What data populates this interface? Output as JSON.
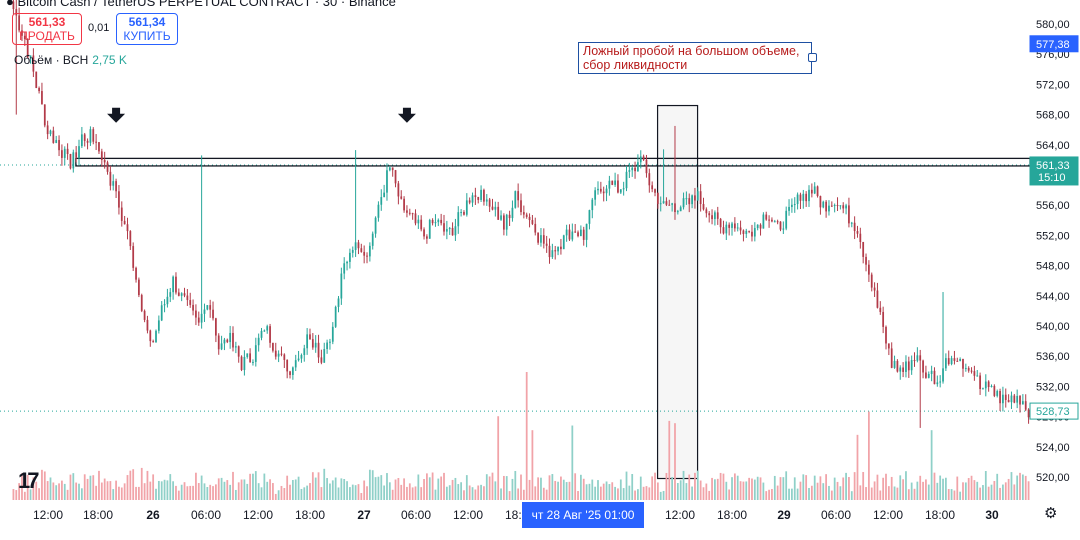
{
  "toolbar": {
    "sell_price": "561,33",
    "sell_label": "ПРОДАТЬ",
    "spread": "0,01",
    "buy_price": "561,34",
    "buy_label": "КУПИТЬ",
    "volume_label": "Объём · BCH",
    "volume_value": "2,75 K"
  },
  "annotation": {
    "text": "Ложный пробой на большом объеме, сбор ликвидности"
  },
  "time_marker": {
    "label": "чт 28 Авг '25   01:00"
  },
  "chart_data": {
    "type": "candlestick",
    "y_ticks": [
      580,
      576,
      572,
      568,
      564,
      560,
      556,
      552,
      548,
      544,
      540,
      536,
      532,
      528,
      524,
      520
    ],
    "y_tick_labels": [
      "580,00",
      "576,00",
      "572,00",
      "568,00",
      "564,00",
      "560,00",
      "556,00",
      "552,00",
      "548,00",
      "544,00",
      "540,00",
      "536,00",
      "532,00",
      "528,00",
      "524,00",
      "520,00"
    ],
    "ylim": [
      518,
      582
    ],
    "x_labels": [
      "12:00",
      "18:00",
      "26",
      "06:00",
      "12:00",
      "18:00",
      "27",
      "06:00",
      "12:00",
      "18:00",
      "12:00",
      "18:00",
      "29",
      "06:00",
      "12:00",
      "18:00",
      "30"
    ],
    "price_labels": [
      {
        "value": 577.38,
        "label": "577,38",
        "color": "#2962ff"
      },
      {
        "value": 561.33,
        "label": "561,33",
        "sublabel": "15:10",
        "color": "#26a69a"
      },
      {
        "value": 528.73,
        "label": "528,73",
        "color": "#26a69a",
        "outline": true
      }
    ],
    "resistance_level": [
      561.2,
      562.2
    ],
    "colors": {
      "up": "#26a69a",
      "down": "#b23a48",
      "vol_up": "#8fd0c8",
      "vol_down": "#f1a3a8"
    },
    "anchors": [
      [
        0,
        582
      ],
      [
        4,
        578
      ],
      [
        8,
        572
      ],
      [
        12,
        566
      ],
      [
        16,
        564
      ],
      [
        20,
        561
      ],
      [
        24,
        565
      ],
      [
        28,
        565
      ],
      [
        32,
        562
      ],
      [
        36,
        557
      ],
      [
        40,
        552
      ],
      [
        44,
        545
      ],
      [
        48,
        537
      ],
      [
        52,
        542
      ],
      [
        56,
        546
      ],
      [
        60,
        543
      ],
      [
        64,
        541
      ],
      [
        68,
        543
      ],
      [
        72,
        538
      ],
      [
        76,
        538
      ],
      [
        80,
        535
      ],
      [
        84,
        536
      ],
      [
        88,
        540
      ],
      [
        92,
        537
      ],
      [
        96,
        534
      ],
      [
        100,
        536
      ],
      [
        104,
        539
      ],
      [
        108,
        536
      ],
      [
        112,
        540
      ],
      [
        116,
        548
      ],
      [
        120,
        552
      ],
      [
        124,
        549
      ],
      [
        128,
        556
      ],
      [
        132,
        561
      ],
      [
        136,
        556
      ],
      [
        140,
        554
      ],
      [
        144,
        552
      ],
      [
        148,
        554
      ],
      [
        152,
        552
      ],
      [
        156,
        554
      ],
      [
        160,
        557
      ],
      [
        164,
        558
      ],
      [
        168,
        556
      ],
      [
        172,
        553
      ],
      [
        176,
        557
      ],
      [
        180,
        555
      ],
      [
        184,
        552
      ],
      [
        188,
        550
      ],
      [
        192,
        551
      ],
      [
        196,
        553
      ],
      [
        200,
        552
      ],
      [
        204,
        557
      ],
      [
        208,
        559
      ],
      [
        212,
        558
      ],
      [
        216,
        560
      ],
      [
        220,
        562
      ],
      [
        224,
        558
      ],
      [
        228,
        556
      ],
      [
        232,
        556
      ],
      [
        236,
        556
      ],
      [
        240,
        557
      ],
      [
        244,
        555
      ],
      [
        248,
        553
      ],
      [
        252,
        554
      ],
      [
        256,
        552
      ],
      [
        260,
        553
      ],
      [
        264,
        555
      ],
      [
        268,
        553
      ],
      [
        272,
        555
      ],
      [
        276,
        557
      ],
      [
        280,
        558
      ],
      [
        284,
        556
      ],
      [
        288,
        557
      ],
      [
        292,
        555
      ],
      [
        296,
        553
      ],
      [
        300,
        547
      ],
      [
        304,
        541
      ],
      [
        308,
        535
      ],
      [
        312,
        534
      ],
      [
        316,
        536
      ],
      [
        320,
        534
      ],
      [
        324,
        533
      ],
      [
        328,
        536
      ],
      [
        332,
        535
      ],
      [
        336,
        533
      ],
      [
        340,
        532
      ],
      [
        344,
        531
      ],
      [
        348,
        530
      ],
      [
        352,
        531
      ],
      [
        356,
        529
      ]
    ],
    "spikes": [
      {
        "index": 1,
        "high": 584,
        "low": 568
      },
      {
        "index": 66,
        "high": 562.6
      },
      {
        "index": 120,
        "high": 563.3
      },
      {
        "index": 228,
        "high": 563.4
      },
      {
        "index": 232,
        "high": 566.5
      },
      {
        "index": 326,
        "high": 544.5
      },
      {
        "index": 318,
        "low": 526.5
      }
    ],
    "volume_spikes": [
      {
        "index": 92,
        "volume": 130
      },
      {
        "index": 122,
        "volume": 150
      },
      {
        "index": 170,
        "volume": 1800
      },
      {
        "index": 180,
        "volume": 2750
      },
      {
        "index": 182,
        "volume": 1500
      },
      {
        "index": 196,
        "volume": 1600
      },
      {
        "index": 230,
        "volume": 1700
      },
      {
        "index": 232,
        "volume": 1650
      },
      {
        "index": 296,
        "volume": 1400
      },
      {
        "index": 300,
        "volume": 1900
      },
      {
        "index": 322,
        "volume": 1500
      }
    ]
  }
}
